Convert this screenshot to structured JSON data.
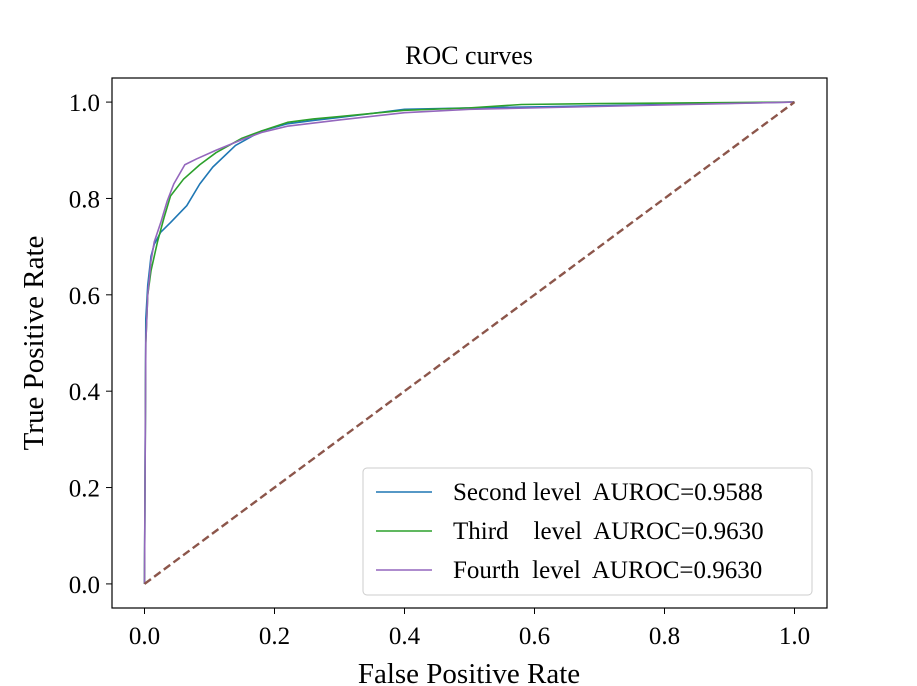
{
  "chart_data": {
    "type": "line",
    "title": "ROC curves",
    "xlabel": "False Positive Rate",
    "ylabel": "True Positive Rate",
    "xlim": [
      -0.05,
      1.05
    ],
    "ylim": [
      -0.05,
      1.05
    ],
    "xticks": [
      0.0,
      0.2,
      0.4,
      0.6,
      0.8,
      1.0
    ],
    "yticks": [
      0.0,
      0.2,
      0.4,
      0.6,
      0.8,
      1.0
    ],
    "xtick_labels": [
      "0.0",
      "0.2",
      "0.4",
      "0.6",
      "0.8",
      "1.0"
    ],
    "ytick_labels": [
      "0.0",
      "0.2",
      "0.4",
      "0.6",
      "0.8",
      "1.0"
    ],
    "grid": false,
    "legend_position": "bottom-right",
    "series": [
      {
        "name": "Second level  AUROC=0.9588",
        "color": "#1f77b4",
        "x": [
          0.0,
          0.002,
          0.005,
          0.01,
          0.015,
          0.025,
          0.04,
          0.065,
          0.085,
          0.105,
          0.14,
          0.18,
          0.22,
          0.26,
          0.3,
          0.4,
          0.5,
          0.6,
          0.8,
          1.0
        ],
        "y": [
          0.0,
          0.55,
          0.62,
          0.68,
          0.705,
          0.73,
          0.75,
          0.785,
          0.83,
          0.865,
          0.91,
          0.94,
          0.955,
          0.962,
          0.968,
          0.985,
          0.988,
          0.99,
          0.995,
          1.0
        ]
      },
      {
        "name": "Third    level  AUROC=0.9630",
        "color": "#2ca02c",
        "x": [
          0.0,
          0.002,
          0.005,
          0.01,
          0.015,
          0.02,
          0.03,
          0.04,
          0.06,
          0.085,
          0.11,
          0.15,
          0.18,
          0.22,
          0.26,
          0.3,
          0.4,
          0.5,
          0.58,
          0.7,
          1.0
        ],
        "y": [
          0.0,
          0.5,
          0.6,
          0.65,
          0.68,
          0.71,
          0.76,
          0.805,
          0.84,
          0.87,
          0.895,
          0.925,
          0.94,
          0.958,
          0.965,
          0.97,
          0.983,
          0.988,
          0.995,
          0.997,
          1.0
        ]
      },
      {
        "name": "Fourth  level  AUROC=0.9630",
        "color": "#9467bd",
        "x": [
          0.0,
          0.002,
          0.005,
          0.01,
          0.015,
          0.025,
          0.035,
          0.045,
          0.062,
          0.08,
          0.11,
          0.15,
          0.18,
          0.22,
          0.3,
          0.4,
          0.5,
          0.6,
          0.8,
          1.0
        ],
        "y": [
          0.0,
          0.5,
          0.6,
          0.67,
          0.71,
          0.75,
          0.795,
          0.83,
          0.87,
          0.882,
          0.9,
          0.922,
          0.937,
          0.95,
          0.963,
          0.978,
          0.985,
          0.988,
          0.994,
          1.0
        ]
      },
      {
        "name": "",
        "color": "#8c564b",
        "dashed": true,
        "x": [
          0.0,
          1.0
        ],
        "y": [
          0.0,
          1.0
        ]
      }
    ]
  }
}
